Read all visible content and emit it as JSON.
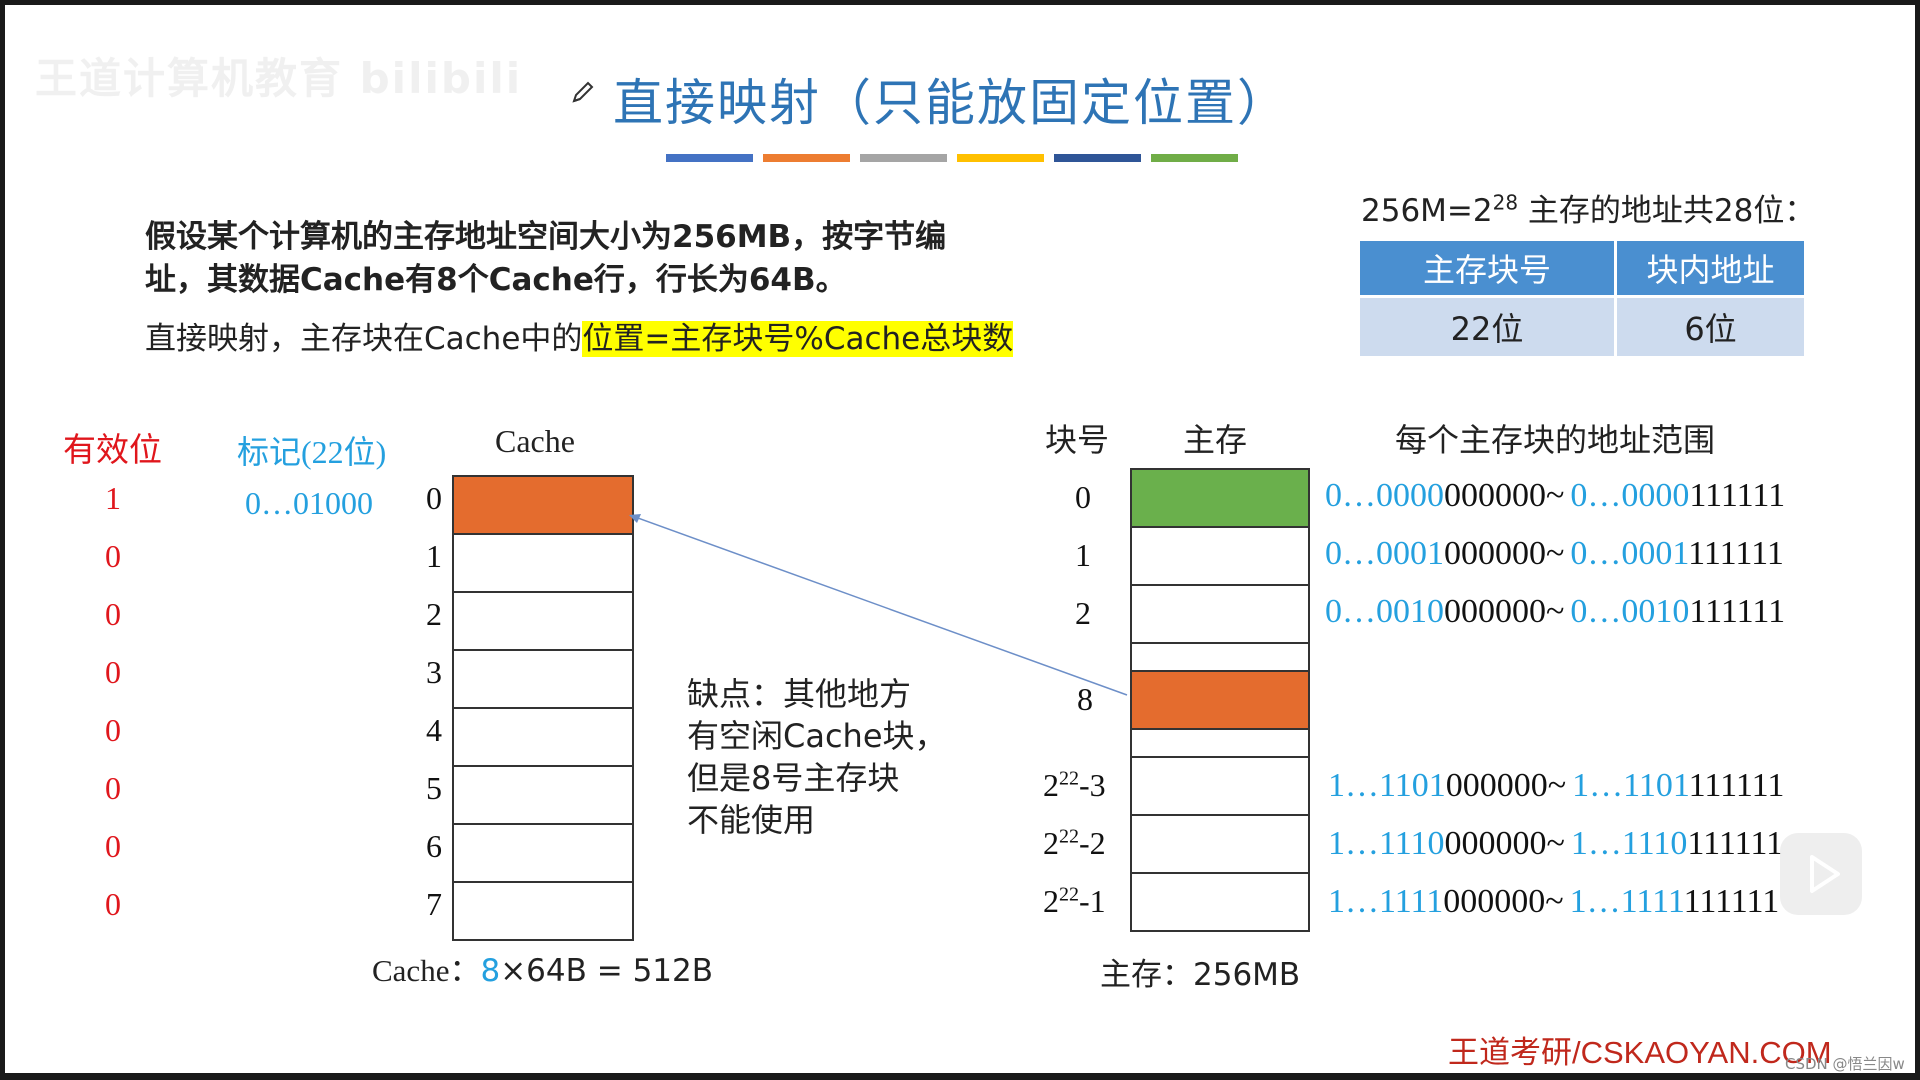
{
  "watermark": "王道计算机教育 bilibili",
  "title": "直接映射（只能放固定位置）",
  "color_bar": [
    "#4472c4",
    "#ed7d31",
    "#a5a5a5",
    "#ffc000",
    "#2f5597",
    "#70ad47"
  ],
  "description": {
    "line1": "假设某个计算机的主存地址空间大小为256MB，按字节编",
    "line2": "址，其数据Cache有8个Cache行，行长为64B。",
    "line3_prefix": "直接映射，主存块在Cache中的",
    "line3_highlight": "位置=主存块号%Cache总块数"
  },
  "address": {
    "formula_base": "256M=2",
    "formula_exp": "28",
    "formula_rest": " 主存的地址共28位：",
    "headers": [
      "主存块号",
      "块内地址"
    ],
    "values": [
      "22位",
      "6位"
    ]
  },
  "cache": {
    "valid_header": "有效位",
    "tag_header": "标记(22位)",
    "title": "Cache",
    "valid_bits": [
      "1",
      "0",
      "0",
      "0",
      "0",
      "0",
      "0",
      "0"
    ],
    "tag_row0": "0…01000",
    "line_numbers": [
      "0",
      "1",
      "2",
      "3",
      "4",
      "5",
      "6",
      "7"
    ],
    "size_prefix": "Cache：",
    "size_count": "8",
    "size_rest": "×64B = 512B"
  },
  "note": {
    "line1": "缺点：其他地方",
    "line2": "有空闲Cache块，",
    "line3": "但是8号主存块",
    "line4": "不能使用"
  },
  "memory": {
    "block_header": "块号",
    "title": "主存",
    "range_header": "每个主存块的地址范围",
    "block_labels_top": [
      "0",
      "1",
      "2"
    ],
    "block_label_8": "8",
    "block_labels_bottom": [
      {
        "base": "2",
        "exp": "22",
        "suffix": "-3"
      },
      {
        "base": "2",
        "exp": "22",
        "suffix": "-2"
      },
      {
        "base": "2",
        "exp": "22",
        "suffix": "-1"
      }
    ],
    "ranges": [
      {
        "s_pre": "0…0000",
        "s_post": "000000",
        "tilde": "~",
        "e_pre": "0…0000",
        "e_post": "111111"
      },
      {
        "s_pre": "0…0001",
        "s_post": "000000",
        "tilde": "~",
        "e_pre": "0…0001",
        "e_post": "111111"
      },
      {
        "s_pre": "0…0010",
        "s_post": "000000",
        "tilde": "~",
        "e_pre": "0…0010",
        "e_post": "111111"
      },
      {
        "s_pre": "1…1101",
        "s_post": "000000",
        "tilde": "~",
        "e_pre": "1…1101",
        "e_post": "111111"
      },
      {
        "s_pre": "1…1110",
        "s_post": "000000",
        "tilde": "~",
        "e_pre": "1…1110",
        "e_post": "111111"
      },
      {
        "s_pre": "1…1111",
        "s_post": "000000",
        "tilde": "~",
        "e_pre": "1…1111",
        "e_post": "111111"
      }
    ],
    "size": "主存：256MB"
  },
  "colors": {
    "orange": "#e46c2e",
    "green": "#6ab04c",
    "blue_text": "#24a0df",
    "red_text": "#e0161c"
  },
  "footer": "王道考研/CSKAOYAN.COM",
  "csdn": "CSDN @悟兰因w"
}
